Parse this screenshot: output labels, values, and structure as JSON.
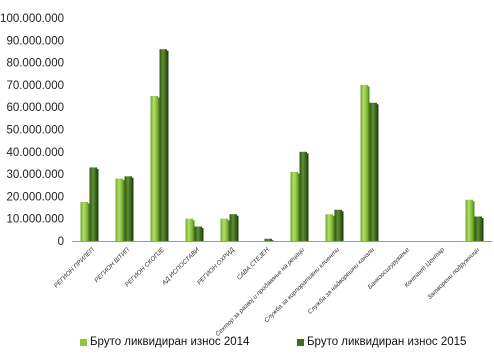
{
  "chart_data": {
    "type": "bar",
    "title": "",
    "xlabel": "",
    "ylabel": "",
    "ylim": [
      0,
      100000000
    ],
    "yticks": [
      "0",
      "10.000.000",
      "20.000.000",
      "30.000.000",
      "40.000.000",
      "50.000.000",
      "60.000.000",
      "70.000.000",
      "80.000.000",
      "90.000.000",
      "100.000.000"
    ],
    "grid": false,
    "legend_position": "bottom",
    "categories": [
      "РЕГИОН ПРИЛЕП",
      "РЕГИОН ШТИП",
      "РЕГИОН СКОПЈЕ",
      "АД ИСПОСТАВИ",
      "РЕГИОН ОХРИД",
      "САВА СТЕЈЕН",
      "Сектор за развој и продавање на рецаци",
      "Служба за корпоративни клиенти",
      "Служба за надворешни канали",
      "Банкоосигурување",
      "Контакт Центар",
      "Затворени подружници"
    ],
    "series": [
      {
        "name": "Бруто ликвидиран износ 2014",
        "color": "#8cc63f",
        "values": [
          17500000,
          28000000,
          65000000,
          10000000,
          10000000,
          0,
          31000000,
          12000000,
          70000000,
          0,
          0,
          18500000
        ]
      },
      {
        "name": "Бруто ликвидиран износ 2015",
        "color": "#3e6b1f",
        "values": [
          33000000,
          29000000,
          86000000,
          6500000,
          12000000,
          1000000,
          40000000,
          14000000,
          62000000,
          0,
          0,
          11000000
        ]
      }
    ]
  }
}
